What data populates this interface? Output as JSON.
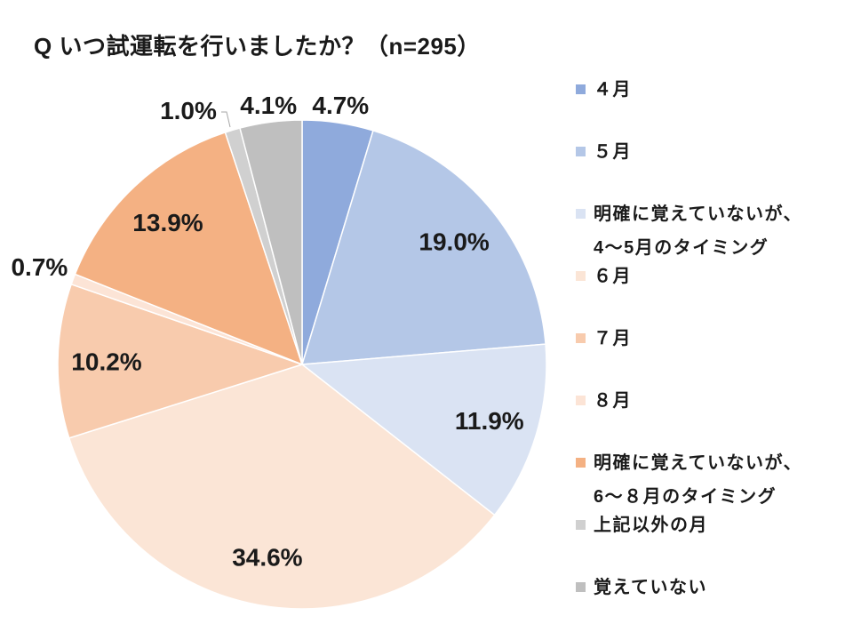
{
  "chart_data": {
    "type": "pie",
    "title": "Q いつ試運転を行いましたか？（n=295）",
    "categories": [
      "４月",
      "５月",
      "明確に覚えていないが、\n4～5月のタイミング",
      "６月",
      "７月",
      "８月",
      "明確に覚えていないが、\n6～８月のタイミング",
      "上記以外の月",
      "覚えていない"
    ],
    "values": [
      4.7,
      19.0,
      11.9,
      34.6,
      10.2,
      0.7,
      13.9,
      1.0,
      4.1
    ],
    "data_labels": [
      "4.7%",
      "19.0%",
      "11.9%",
      "34.6%",
      "10.2%",
      "0.7%",
      "13.9%",
      "1.0%",
      "4.1%"
    ],
    "colors": [
      "#8FAADC",
      "#B4C7E7",
      "#DAE3F3",
      "#FBE5D6",
      "#F8CBAD",
      "#FCE4D6",
      "#F4B183",
      "#D0D0D0",
      "#BFBFBF"
    ],
    "legend_position": "right"
  }
}
